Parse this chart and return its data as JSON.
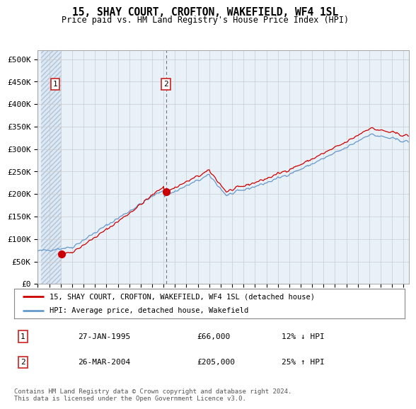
{
  "title": "15, SHAY COURT, CROFTON, WAKEFIELD, WF4 1SL",
  "subtitle": "Price paid vs. HM Land Registry's House Price Index (HPI)",
  "ylabel_ticks": [
    "£0",
    "£50K",
    "£100K",
    "£150K",
    "£200K",
    "£250K",
    "£300K",
    "£350K",
    "£400K",
    "£450K",
    "£500K"
  ],
  "ytick_values": [
    0,
    50000,
    100000,
    150000,
    200000,
    250000,
    300000,
    350000,
    400000,
    450000,
    500000
  ],
  "ylim": [
    0,
    520000
  ],
  "xlim_start": 1993.25,
  "xlim_end": 2025.5,
  "sale1_year": 1995.07,
  "sale1_price": 66000,
  "sale2_year": 2004.23,
  "sale2_price": 205000,
  "red_line_color": "#cc0000",
  "blue_line_color": "#6699cc",
  "hatch_bg_color": "#dde8f4",
  "plot_bg_color": "#e8f0f8",
  "legend_label1": "15, SHAY COURT, CROFTON, WAKEFIELD, WF4 1SL (detached house)",
  "legend_label2": "HPI: Average price, detached house, Wakefield",
  "table_row1": [
    "1",
    "27-JAN-1995",
    "£66,000",
    "12% ↓ HPI"
  ],
  "table_row2": [
    "2",
    "26-MAR-2004",
    "£205,000",
    "25% ↑ HPI"
  ],
  "footer": "Contains HM Land Registry data © Crown copyright and database right 2024.\nThis data is licensed under the Open Government Licence v3.0.",
  "background_color": "#ffffff"
}
